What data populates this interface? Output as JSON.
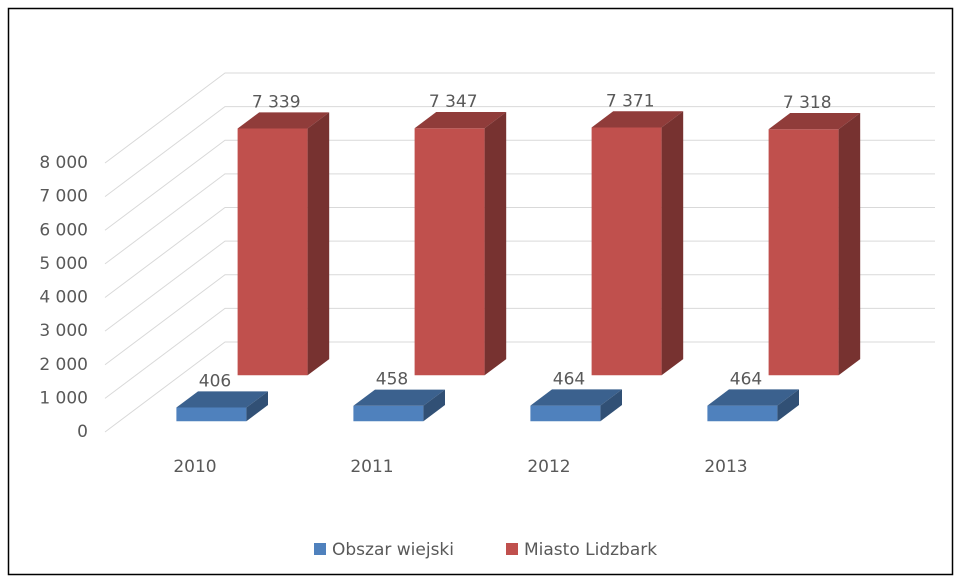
{
  "chart_data": {
    "type": "bar3d",
    "categories": [
      "2010",
      "2011",
      "2012",
      "2013"
    ],
    "series": [
      {
        "name": "Obszar wiejski",
        "color": "#4f81bd",
        "values": [
          406,
          458,
          464,
          464
        ]
      },
      {
        "name": "Miasto Lidzbark",
        "color": "#c0504d",
        "values": [
          7339,
          7347,
          7371,
          7318
        ],
        "value_labels": [
          "7 339",
          "7 347",
          "7 371",
          "7 318"
        ]
      }
    ],
    "ylim": [
      0,
      8000
    ],
    "yticks": [
      0,
      {
        "value": 1000,
        "label": "1 000"
      },
      {
        "value": 2000,
        "label": "2 000"
      },
      {
        "value": 3000,
        "label": "3 000"
      },
      {
        "value": 4000,
        "label": "4 000"
      },
      {
        "value": 5000,
        "label": "5 000"
      },
      {
        "value": 6000,
        "label": "6 000"
      },
      {
        "value": 7000,
        "label": "7 000"
      },
      {
        "value": 8000,
        "label": "8 000"
      }
    ],
    "grid": true,
    "legend": "bottom"
  }
}
